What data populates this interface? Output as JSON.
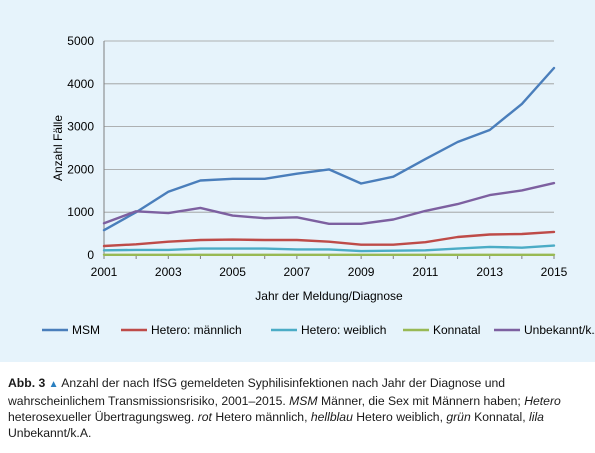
{
  "chart_data": {
    "type": "line",
    "title": "",
    "xlabel": "Jahr der Meldung/Diagnose",
    "ylabel": "Anzahl Fälle",
    "xlim": [
      2001,
      2015
    ],
    "ylim": [
      0,
      5000
    ],
    "x_ticks": [
      "2001",
      "2003",
      "2005",
      "2007",
      "2009",
      "2011",
      "2013",
      "2015"
    ],
    "y_ticks": [
      "0",
      "1000",
      "2000",
      "3000",
      "4000",
      "5000"
    ],
    "grid": "horizontal",
    "legend_position": "bottom",
    "x": [
      2001,
      2002,
      2003,
      2004,
      2005,
      2006,
      2007,
      2008,
      2009,
      2010,
      2011,
      2012,
      2013,
      2014,
      2015
    ],
    "series": [
      {
        "name": "MSM",
        "color": "#4a7ebb",
        "values": [
          580,
          1000,
          1480,
          1740,
          1780,
          1780,
          1900,
          2000,
          1670,
          1830,
          2240,
          2640,
          2920,
          3530,
          4370
        ]
      },
      {
        "name": "Hetero: männlich",
        "color": "#be4b48",
        "values": [
          210,
          250,
          310,
          350,
          360,
          350,
          350,
          310,
          240,
          240,
          300,
          420,
          480,
          490,
          540
        ]
      },
      {
        "name": "Hetero: weiblich",
        "color": "#4bacc6",
        "values": [
          110,
          120,
          120,
          150,
          150,
          150,
          130,
          130,
          90,
          100,
          110,
          150,
          190,
          170,
          220
        ]
      },
      {
        "name": "Konnatal",
        "color": "#98b954",
        "values": [
          5,
          5,
          5,
          5,
          5,
          5,
          5,
          5,
          5,
          5,
          5,
          5,
          5,
          5,
          5
        ]
      },
      {
        "name": "Unbekannt/k.A.",
        "color": "#7d60a0",
        "values": [
          740,
          1020,
          980,
          1100,
          920,
          860,
          880,
          730,
          730,
          830,
          1030,
          1190,
          1400,
          1510,
          1680
        ]
      }
    ]
  },
  "caption": {
    "label": "Abb. 3",
    "marker": "▲",
    "p1": " Anzahl der nach IfSG gemeldeten Syphilisinfektionen nach Jahr der Diagnose und wahrscheinlichem Transmissionsrisiko, 2001–2015. ",
    "i1": "MSM",
    "p2": " Männer, die Sex mit Männern haben; ",
    "i2": "Hetero",
    "p3": " heterosexueller Übertragungsweg. ",
    "i3": "rot",
    "p4": " Hetero männlich, ",
    "i4": "hellblau",
    "p5": " Hetero weiblich, ",
    "i5": "grün",
    "p6": " Konnatal, ",
    "i6": "lila",
    "p7": " Unbekannt/k.A."
  }
}
